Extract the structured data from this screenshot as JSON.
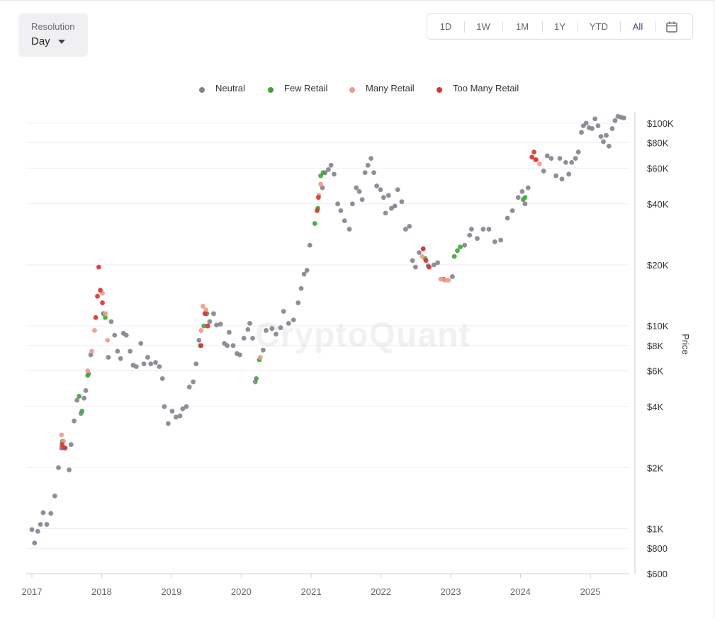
{
  "resolution": {
    "label": "Resolution",
    "value": "Day"
  },
  "range_buttons": [
    "1D",
    "1W",
    "1M",
    "1Y",
    "YTD",
    "All"
  ],
  "active_range": "All",
  "watermark": "CryptoQuant",
  "colors": {
    "neutral": "#85818f",
    "few_retail": "#3fa63a",
    "many_retail": "#ee9a8a",
    "too_many_retail": "#d93232",
    "active_range": "#3d3da8"
  },
  "chart_data": {
    "type": "scatter",
    "title": "",
    "xlabel": "",
    "ylabel": "Price",
    "yscale": "log",
    "ylim": [
      600,
      110000
    ],
    "xlim": [
      "2017-01-01",
      "2025-07-01"
    ],
    "x_ticks": [
      "2017",
      "2018",
      "2019",
      "2020",
      "2021",
      "2022",
      "2023",
      "2024",
      "2025"
    ],
    "y_ticks": [
      {
        "value": 100000,
        "label": "$100K"
      },
      {
        "value": 80000,
        "label": "$80K"
      },
      {
        "value": 60000,
        "label": "$60K"
      },
      {
        "value": 40000,
        "label": "$40K"
      },
      {
        "value": 20000,
        "label": "$20K"
      },
      {
        "value": 10000,
        "label": "$10K"
      },
      {
        "value": 8000,
        "label": "$8K"
      },
      {
        "value": 6000,
        "label": "$6K"
      },
      {
        "value": 4000,
        "label": "$4K"
      },
      {
        "value": 2000,
        "label": "$2K"
      },
      {
        "value": 1000,
        "label": "$1K"
      },
      {
        "value": 800,
        "label": "$800"
      },
      {
        "value": 600,
        "label": "$600"
      }
    ],
    "grid": true,
    "legend_position": "top",
    "series": [
      {
        "name": "Neutral",
        "color": "#85818f",
        "points": [
          [
            "2017-01-01",
            990
          ],
          [
            "2017-01-15",
            850
          ],
          [
            "2017-02-01",
            970
          ],
          [
            "2017-02-15",
            1050
          ],
          [
            "2017-03-01",
            1200
          ],
          [
            "2017-03-20",
            1050
          ],
          [
            "2017-04-10",
            1190
          ],
          [
            "2017-05-01",
            1450
          ],
          [
            "2017-05-20",
            2000
          ],
          [
            "2017-06-05",
            2500
          ],
          [
            "2017-06-25",
            2500
          ],
          [
            "2017-07-15",
            1950
          ],
          [
            "2017-07-25",
            2600
          ],
          [
            "2017-08-10",
            3400
          ],
          [
            "2017-08-25",
            4300
          ],
          [
            "2017-09-15",
            3700
          ],
          [
            "2017-10-01",
            4400
          ],
          [
            "2017-10-10",
            4800
          ],
          [
            "2017-10-25",
            5800
          ],
          [
            "2017-11-05",
            7200
          ],
          [
            "2018-02-05",
            7000
          ],
          [
            "2018-02-20",
            10500
          ],
          [
            "2018-03-10",
            9000
          ],
          [
            "2018-03-25",
            7500
          ],
          [
            "2018-04-10",
            6900
          ],
          [
            "2018-04-25",
            9200
          ],
          [
            "2018-05-10",
            9000
          ],
          [
            "2018-05-30",
            7500
          ],
          [
            "2018-06-15",
            6400
          ],
          [
            "2018-07-01",
            6300
          ],
          [
            "2018-07-25",
            8200
          ],
          [
            "2018-08-10",
            6500
          ],
          [
            "2018-08-30",
            7000
          ],
          [
            "2018-09-15",
            6500
          ],
          [
            "2018-10-10",
            6600
          ],
          [
            "2018-10-30",
            6300
          ],
          [
            "2018-11-15",
            5500
          ],
          [
            "2018-11-25",
            4000
          ],
          [
            "2018-12-15",
            3300
          ],
          [
            "2019-01-05",
            3800
          ],
          [
            "2019-01-25",
            3550
          ],
          [
            "2019-02-15",
            3600
          ],
          [
            "2019-03-01",
            3900
          ],
          [
            "2019-03-20",
            4000
          ],
          [
            "2019-04-05",
            5000
          ],
          [
            "2019-04-25",
            5300
          ],
          [
            "2019-05-10",
            6500
          ],
          [
            "2019-05-25",
            8500
          ],
          [
            "2019-07-20",
            10500
          ],
          [
            "2019-08-10",
            11500
          ],
          [
            "2019-08-25",
            10100
          ],
          [
            "2019-09-15",
            10200
          ],
          [
            "2019-10-05",
            8200
          ],
          [
            "2019-10-20",
            8000
          ],
          [
            "2019-10-30",
            9300
          ],
          [
            "2019-11-20",
            8000
          ],
          [
            "2019-12-10",
            7300
          ],
          [
            "2019-12-25",
            7200
          ],
          [
            "2020-01-15",
            8700
          ],
          [
            "2020-02-05",
            9600
          ],
          [
            "2020-02-15",
            10300
          ],
          [
            "2020-03-01",
            8700
          ],
          [
            "2020-03-15",
            5300
          ],
          [
            "2020-04-25",
            7600
          ],
          [
            "2020-05-10",
            9500
          ],
          [
            "2020-06-10",
            9700
          ],
          [
            "2020-07-01",
            9100
          ],
          [
            "2020-07-25",
            9800
          ],
          [
            "2020-08-10",
            11800
          ],
          [
            "2020-09-05",
            10300
          ],
          [
            "2020-10-01",
            10700
          ],
          [
            "2020-10-25",
            13000
          ],
          [
            "2020-11-10",
            15300
          ],
          [
            "2020-11-25",
            18000
          ],
          [
            "2020-12-10",
            18800
          ],
          [
            "2020-12-25",
            25000
          ],
          [
            "2021-03-01",
            48000
          ],
          [
            "2021-03-15",
            57000
          ],
          [
            "2021-04-01",
            59000
          ],
          [
            "2021-04-15",
            62000
          ],
          [
            "2021-05-01",
            56000
          ],
          [
            "2021-05-20",
            40000
          ],
          [
            "2021-06-05",
            37000
          ],
          [
            "2021-06-25",
            33000
          ],
          [
            "2021-07-20",
            30000
          ],
          [
            "2021-08-05",
            40000
          ],
          [
            "2021-08-25",
            48000
          ],
          [
            "2021-09-10",
            46000
          ],
          [
            "2021-09-25",
            42000
          ],
          [
            "2021-10-10",
            57000
          ],
          [
            "2021-10-25",
            62000
          ],
          [
            "2021-11-10",
            67000
          ],
          [
            "2021-11-25",
            57000
          ],
          [
            "2021-12-10",
            49000
          ],
          [
            "2021-12-30",
            47000
          ],
          [
            "2022-01-15",
            43000
          ],
          [
            "2022-01-25",
            36000
          ],
          [
            "2022-02-10",
            44000
          ],
          [
            "2022-02-25",
            38000
          ],
          [
            "2022-03-15",
            39000
          ],
          [
            "2022-03-30",
            47000
          ],
          [
            "2022-04-20",
            41000
          ],
          [
            "2022-05-10",
            30000
          ],
          [
            "2022-05-30",
            31000
          ],
          [
            "2022-06-15",
            21000
          ],
          [
            "2022-07-01",
            19500
          ],
          [
            "2022-07-20",
            23000
          ],
          [
            "2022-08-10",
            24000
          ],
          [
            "2022-09-05",
            19800
          ],
          [
            "2022-10-05",
            20000
          ],
          [
            "2022-10-25",
            20500
          ],
          [
            "2023-01-10",
            17500
          ],
          [
            "2023-03-15",
            25000
          ],
          [
            "2023-04-10",
            28000
          ],
          [
            "2023-04-20",
            30000
          ],
          [
            "2023-05-20",
            27000
          ],
          [
            "2023-06-20",
            30000
          ],
          [
            "2023-07-20",
            30000
          ],
          [
            "2023-08-20",
            26000
          ],
          [
            "2023-09-20",
            26500
          ],
          [
            "2023-10-25",
            34000
          ],
          [
            "2023-11-20",
            37000
          ],
          [
            "2023-12-20",
            43000
          ],
          [
            "2024-01-10",
            46000
          ],
          [
            "2024-01-25",
            40000
          ],
          [
            "2024-02-10",
            48000
          ],
          [
            "2024-05-01",
            58000
          ],
          [
            "2024-05-20",
            69000
          ],
          [
            "2024-06-10",
            67000
          ],
          [
            "2024-07-05",
            55000
          ],
          [
            "2024-07-25",
            67000
          ],
          [
            "2024-08-05",
            53000
          ],
          [
            "2024-08-25",
            64000
          ],
          [
            "2024-09-10",
            56000
          ],
          [
            "2024-09-25",
            64000
          ],
          [
            "2024-10-15",
            67000
          ],
          [
            "2024-10-30",
            72000
          ],
          [
            "2024-11-15",
            90000
          ],
          [
            "2024-11-25",
            97000
          ],
          [
            "2024-12-10",
            100000
          ],
          [
            "2024-12-25",
            95000
          ],
          [
            "2025-01-10",
            94000
          ],
          [
            "2025-01-25",
            105000
          ],
          [
            "2025-02-10",
            97000
          ],
          [
            "2025-02-25",
            86000
          ],
          [
            "2025-03-10",
            81000
          ],
          [
            "2025-03-25",
            87000
          ],
          [
            "2025-04-08",
            77000
          ],
          [
            "2025-04-25",
            94000
          ],
          [
            "2025-05-10",
            103000
          ],
          [
            "2025-05-25",
            108000
          ],
          [
            "2025-06-10",
            107000
          ],
          [
            "2025-06-25",
            106000
          ]
        ]
      },
      {
        "name": "Few Retail",
        "color": "#3fa63a",
        "points": [
          [
            "2017-06-10",
            2700
          ],
          [
            "2017-09-05",
            4500
          ],
          [
            "2017-09-20",
            3800
          ],
          [
            "2017-10-20",
            5700
          ],
          [
            "2018-01-10",
            11500
          ],
          [
            "2018-01-20",
            11000
          ],
          [
            "2019-06-01",
            8000
          ],
          [
            "2019-06-20",
            10000
          ],
          [
            "2019-07-05",
            11500
          ],
          [
            "2020-03-20",
            5500
          ],
          [
            "2020-04-05",
            6800
          ],
          [
            "2021-01-20",
            32000
          ],
          [
            "2021-02-05",
            38000
          ],
          [
            "2021-02-20",
            55000
          ],
          [
            "2021-03-05",
            57000
          ],
          [
            "2022-08-20",
            21500
          ],
          [
            "2022-11-25",
            17000
          ],
          [
            "2023-01-20",
            22000
          ],
          [
            "2023-02-05",
            23500
          ],
          [
            "2023-02-20",
            24500
          ],
          [
            "2024-01-15",
            42000
          ],
          [
            "2024-01-25",
            43000
          ]
        ]
      },
      {
        "name": "Many Retail",
        "color": "#ee9a8a",
        "points": [
          [
            "2017-06-05",
            2900
          ],
          [
            "2017-06-15",
            2700
          ],
          [
            "2017-10-20",
            6000
          ],
          [
            "2017-11-10",
            7500
          ],
          [
            "2017-11-25",
            9500
          ],
          [
            "2018-01-05",
            14500
          ],
          [
            "2018-01-20",
            11500
          ],
          [
            "2018-02-01",
            8500
          ],
          [
            "2019-06-05",
            9500
          ],
          [
            "2019-06-15",
            12500
          ],
          [
            "2019-07-01",
            12000
          ],
          [
            "2020-04-10",
            7000
          ],
          [
            "2021-02-10",
            44000
          ],
          [
            "2021-02-20",
            50000
          ],
          [
            "2022-08-05",
            22000
          ],
          [
            "2022-11-10",
            17000
          ],
          [
            "2022-12-01",
            16800
          ],
          [
            "2022-12-20",
            16800
          ],
          [
            "2024-03-25",
            66000
          ],
          [
            "2024-04-10",
            63000
          ]
        ]
      },
      {
        "name": "Too Many Retail",
        "color": "#d93232",
        "points": [
          [
            "2017-06-08",
            2600
          ],
          [
            "2017-06-20",
            2500
          ],
          [
            "2017-12-01",
            11000
          ],
          [
            "2017-12-10",
            14000
          ],
          [
            "2017-12-17",
            19500
          ],
          [
            "2017-12-25",
            15000
          ],
          [
            "2018-01-05",
            13000
          ],
          [
            "2019-06-05",
            8000
          ],
          [
            "2019-06-25",
            11500
          ],
          [
            "2019-07-10",
            10000
          ],
          [
            "2021-02-01",
            37000
          ],
          [
            "2021-02-08",
            43000
          ],
          [
            "2022-08-10",
            24000
          ],
          [
            "2022-08-25",
            21000
          ],
          [
            "2022-09-10",
            19500
          ],
          [
            "2024-03-01",
            68000
          ],
          [
            "2024-03-12",
            72000
          ],
          [
            "2024-03-20",
            66000
          ]
        ]
      }
    ]
  }
}
